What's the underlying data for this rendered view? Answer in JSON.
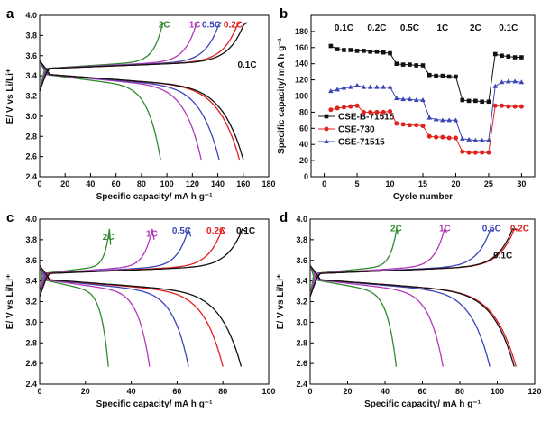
{
  "colors": {
    "green": "#2f8a2f",
    "magenta": "#b23ab8",
    "blue": "#3a45b8",
    "red": "#e0201c",
    "black": "#111111"
  },
  "chart_data": [
    {
      "panel": "a",
      "type": "line",
      "xlabel": "Specific capacity/ mA h g⁻¹",
      "ylabel": "E/ V vs Li/Li⁺",
      "xlim": [
        0,
        180
      ],
      "ylim": [
        2.4,
        4.0
      ],
      "xticks": [
        0,
        20,
        40,
        60,
        80,
        100,
        120,
        140,
        160,
        180
      ],
      "yticks": [
        2.4,
        2.6,
        2.8,
        3.0,
        3.2,
        3.4,
        3.6,
        3.8,
        4.0
      ],
      "series": [
        {
          "name": "2C",
          "color": "green",
          "charge_end": [
            98,
            3.93
          ],
          "discharge_end": [
            95,
            2.5
          ]
        },
        {
          "name": "1C",
          "color": "magenta",
          "charge_end": [
            125,
            3.93
          ],
          "discharge_end": [
            127,
            2.5
          ]
        },
        {
          "name": "0.5C",
          "color": "blue",
          "charge_end": [
            143,
            3.93
          ],
          "discharge_end": [
            141,
            2.5
          ]
        },
        {
          "name": "0.2C",
          "color": "red",
          "charge_end": [
            158,
            3.93
          ],
          "discharge_end": [
            157,
            2.5
          ]
        },
        {
          "name": "0.1C",
          "color": "black",
          "charge_end": [
            163,
            3.93
          ],
          "discharge_end": [
            160,
            2.5
          ]
        }
      ],
      "labels": [
        {
          "text": "2C",
          "color": "green",
          "at": [
            98,
            3.88
          ]
        },
        {
          "text": "1C",
          "color": "magenta",
          "at": [
            122,
            3.88
          ]
        },
        {
          "text": "0.5C",
          "color": "blue",
          "at": [
            135,
            3.88
          ]
        },
        {
          "text": "0.2C",
          "color": "red",
          "at": [
            152,
            3.88
          ]
        },
        {
          "text": "0.1C",
          "color": "black",
          "at": [
            163,
            3.48
          ]
        }
      ]
    },
    {
      "panel": "b",
      "type": "scatter",
      "xlabel": "Cycle number",
      "ylabel": "Specific capacity/ mA h g⁻¹",
      "xlim": [
        -2,
        32
      ],
      "ylim": [
        0,
        200
      ],
      "xticks": [
        0,
        5,
        10,
        15,
        20,
        25,
        30
      ],
      "yticks": [
        0,
        20,
        40,
        60,
        80,
        100,
        120,
        140,
        160,
        180
      ],
      "rate_labels": [
        {
          "text": "0.1C",
          "x": 3
        },
        {
          "text": "0.2C",
          "x": 8
        },
        {
          "text": "0.5C",
          "x": 13
        },
        {
          "text": "1C",
          "x": 18
        },
        {
          "text": "2C",
          "x": 23
        },
        {
          "text": "0.1C",
          "x": 28
        }
      ],
      "legend": "lower-left",
      "series": [
        {
          "name": "CSE-B-71515",
          "color": "black",
          "marker": "square",
          "x": [
            1,
            2,
            3,
            4,
            5,
            6,
            7,
            8,
            9,
            10,
            11,
            12,
            13,
            14,
            15,
            16,
            17,
            18,
            19,
            20,
            21,
            22,
            23,
            24,
            25,
            26,
            27,
            28,
            29,
            30
          ],
          "values": [
            162,
            158,
            157,
            157,
            156,
            156,
            155,
            155,
            154,
            153,
            140,
            139,
            139,
            138,
            138,
            126,
            125,
            125,
            124,
            124,
            95,
            94,
            94,
            93,
            93,
            152,
            150,
            149,
            148,
            148
          ]
        },
        {
          "name": "CSE-730",
          "color": "red",
          "marker": "circle",
          "x": [
            1,
            2,
            3,
            4,
            5,
            6,
            7,
            8,
            9,
            10,
            11,
            12,
            13,
            14,
            15,
            16,
            17,
            18,
            19,
            20,
            21,
            22,
            23,
            24,
            25,
            26,
            27,
            28,
            29,
            30
          ],
          "values": [
            83,
            85,
            86,
            87,
            88,
            80,
            80,
            80,
            80,
            81,
            66,
            65,
            64,
            64,
            63,
            50,
            49,
            49,
            48,
            48,
            31,
            30,
            30,
            30,
            30,
            88,
            88,
            87,
            87,
            87
          ]
        },
        {
          "name": "CSE-71515",
          "color": "blue",
          "marker": "triangle",
          "x": [
            1,
            2,
            3,
            4,
            5,
            6,
            7,
            8,
            9,
            10,
            11,
            12,
            13,
            14,
            15,
            16,
            17,
            18,
            19,
            20,
            21,
            22,
            23,
            24,
            25,
            26,
            27,
            28,
            29,
            30
          ],
          "values": [
            106,
            108,
            110,
            111,
            113,
            111,
            111,
            111,
            111,
            111,
            97,
            96,
            96,
            95,
            95,
            73,
            71,
            70,
            70,
            70,
            47,
            46,
            45,
            45,
            45,
            112,
            117,
            118,
            118,
            117
          ]
        }
      ]
    },
    {
      "panel": "c",
      "type": "line",
      "xlabel": "Specific capacity/ mA h g⁻¹",
      "ylabel": "E/ V vs Li/Li⁺",
      "xlim": [
        0,
        100
      ],
      "ylim": [
        2.4,
        4.0
      ],
      "xticks": [
        0,
        20,
        40,
        60,
        80,
        100
      ],
      "yticks": [
        2.4,
        2.6,
        2.8,
        3.0,
        3.2,
        3.4,
        3.6,
        3.8,
        4.0
      ],
      "series": [
        {
          "name": "2C",
          "color": "green",
          "charge_end": [
            31,
            3.75
          ],
          "discharge_end": [
            30,
            2.5
          ]
        },
        {
          "name": "1C",
          "color": "magenta",
          "charge_end": [
            50,
            3.8
          ],
          "discharge_end": [
            48,
            2.5
          ]
        },
        {
          "name": "0.5C",
          "color": "blue",
          "charge_end": [
            66,
            3.83
          ],
          "discharge_end": [
            65,
            2.5
          ]
        },
        {
          "name": "0.2C",
          "color": "red",
          "charge_end": [
            81,
            3.85
          ],
          "discharge_end": [
            80,
            2.5
          ]
        },
        {
          "name": "0.1C",
          "color": "black",
          "charge_end": [
            90,
            3.88
          ],
          "discharge_end": [
            88,
            2.5
          ]
        }
      ],
      "labels": [
        {
          "text": "2C",
          "color": "green",
          "at": [
            30,
            3.8
          ]
        },
        {
          "text": "1C",
          "color": "magenta",
          "at": [
            49,
            3.83
          ]
        },
        {
          "text": "0.5C",
          "color": "blue",
          "at": [
            62,
            3.86
          ]
        },
        {
          "text": "0.2C",
          "color": "red",
          "at": [
            77,
            3.86
          ]
        },
        {
          "text": "0.1C",
          "color": "black",
          "at": [
            90,
            3.86
          ]
        }
      ]
    },
    {
      "panel": "d",
      "type": "line",
      "xlabel": "Specific capacity/ mA h g⁻¹",
      "ylabel": "E/ V vs Li/Li⁺",
      "xlim": [
        0,
        120
      ],
      "ylim": [
        2.4,
        4.0
      ],
      "xticks": [
        0,
        20,
        40,
        60,
        80,
        100,
        120
      ],
      "yticks": [
        2.4,
        2.6,
        2.8,
        3.0,
        3.2,
        3.4,
        3.6,
        3.8,
        4.0
      ],
      "series": [
        {
          "name": "2C",
          "color": "green",
          "charge_end": [
            47,
            3.85
          ],
          "discharge_end": [
            46,
            2.5
          ]
        },
        {
          "name": "1C",
          "color": "magenta",
          "charge_end": [
            73,
            3.87
          ],
          "discharge_end": [
            71,
            2.5
          ]
        },
        {
          "name": "0.5C",
          "color": "blue",
          "charge_end": [
            98,
            3.88
          ],
          "discharge_end": [
            96,
            2.5
          ]
        },
        {
          "name": "0.2C",
          "color": "red",
          "charge_end": [
            111,
            3.9
          ],
          "discharge_end": [
            110,
            2.5
          ]
        },
        {
          "name": "0.1C",
          "color": "black",
          "charge_end": [
            110,
            3.9
          ],
          "discharge_end": [
            109,
            2.5
          ]
        }
      ],
      "labels": [
        {
          "text": "2C",
          "color": "green",
          "at": [
            46,
            3.88
          ]
        },
        {
          "text": "1C",
          "color": "magenta",
          "at": [
            72,
            3.88
          ]
        },
        {
          "text": "0.5C",
          "color": "blue",
          "at": [
            97,
            3.88
          ]
        },
        {
          "text": "0.2C",
          "color": "red",
          "at": [
            112,
            3.88
          ]
        },
        {
          "text": "0.1C",
          "color": "black",
          "at": [
            103,
            3.62
          ]
        }
      ]
    }
  ]
}
